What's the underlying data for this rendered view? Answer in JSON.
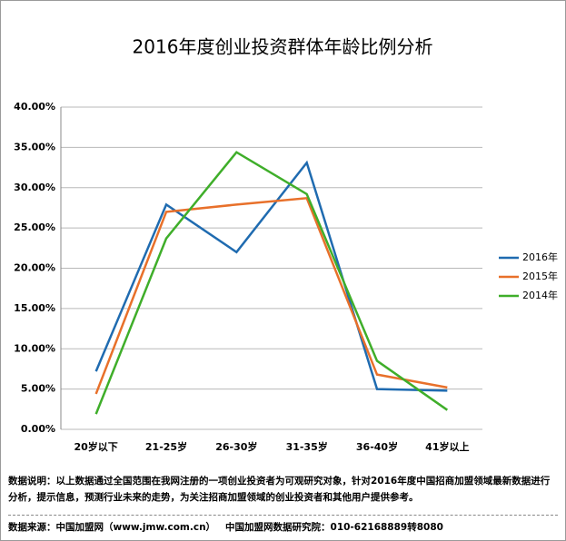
{
  "chart_data": {
    "type": "line",
    "title": "2016年度创业投资群体年龄比例分析",
    "categories": [
      "20岁以下",
      "21-25岁",
      "26-30岁",
      "31-35岁",
      "36-40岁",
      "41岁以上"
    ],
    "series": [
      {
        "name": "2016年",
        "color": "#1f6bb0",
        "values": [
          7.2,
          27.9,
          22.0,
          33.1,
          5.0,
          4.8
        ]
      },
      {
        "name": "2015年",
        "color": "#e8702a",
        "values": [
          4.4,
          27.0,
          27.9,
          28.7,
          6.8,
          5.2
        ]
      },
      {
        "name": "2014年",
        "color": "#3fae2a",
        "values": [
          1.9,
          23.7,
          34.4,
          29.2,
          8.5,
          2.4
        ]
      }
    ],
    "ylim": [
      0,
      40
    ],
    "yticks": [
      {
        "value": 0,
        "label": "0.00%"
      },
      {
        "value": 5,
        "label": "5.00%"
      },
      {
        "value": 10,
        "label": "10.00%"
      },
      {
        "value": 15,
        "label": "15.00%"
      },
      {
        "value": 20,
        "label": "20.00%"
      },
      {
        "value": 25,
        "label": "25.00%"
      },
      {
        "value": 30,
        "label": "30.00%"
      },
      {
        "value": 35,
        "label": "35.00%"
      },
      {
        "value": 40,
        "label": "40.00%"
      }
    ],
    "grid": true,
    "legend": "right",
    "notes": [
      "数据说明：以上数据通过全国范围在我网注册的一项创业投资者为可观研究对象，针对2016年度中国招商加盟领域最新数据进行分析，提示信息，预测行业未来的走势，为关注招商加盟领域的创业投资者和其他用户提供参考。",
      "数据来源：中国加盟网（www.jmw.com.cn）   中国加盟网数据研究院：010-62168889转8080"
    ]
  }
}
